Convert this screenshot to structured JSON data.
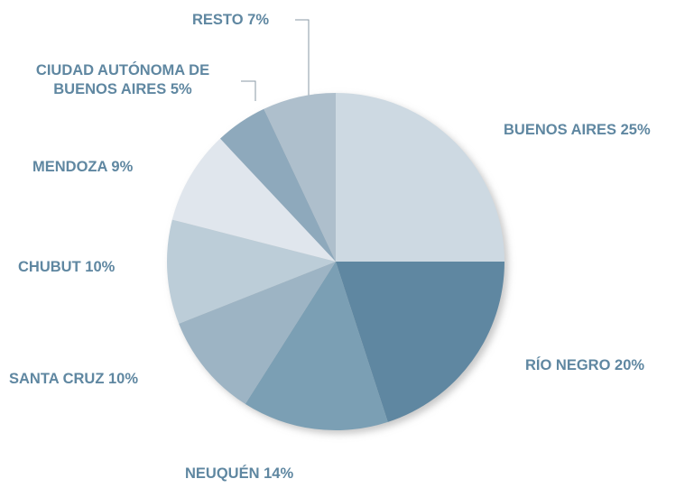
{
  "chart_data": {
    "type": "pie",
    "categories": [
      "BUENOS AIRES",
      "RÍO NEGRO",
      "NEUQUÉN",
      "SANTA CRUZ",
      "CHUBUT",
      "MENDOZA",
      "CIUDAD AUTÓNOMA DE BUENOS AIRES",
      "RESTO"
    ],
    "values": [
      25,
      20,
      14,
      10,
      10,
      9,
      5,
      7
    ],
    "value_labels": [
      "25%",
      "20%",
      "14%",
      "10%",
      "10%",
      "9%",
      "5%",
      "7%"
    ],
    "colors": [
      "#cdd9e2",
      "#5f87a1",
      "#7b9fb4",
      "#9db4c4",
      "#bccdd8",
      "#e0e6ed",
      "#8ea9bc",
      "#aebfcc"
    ]
  }
}
